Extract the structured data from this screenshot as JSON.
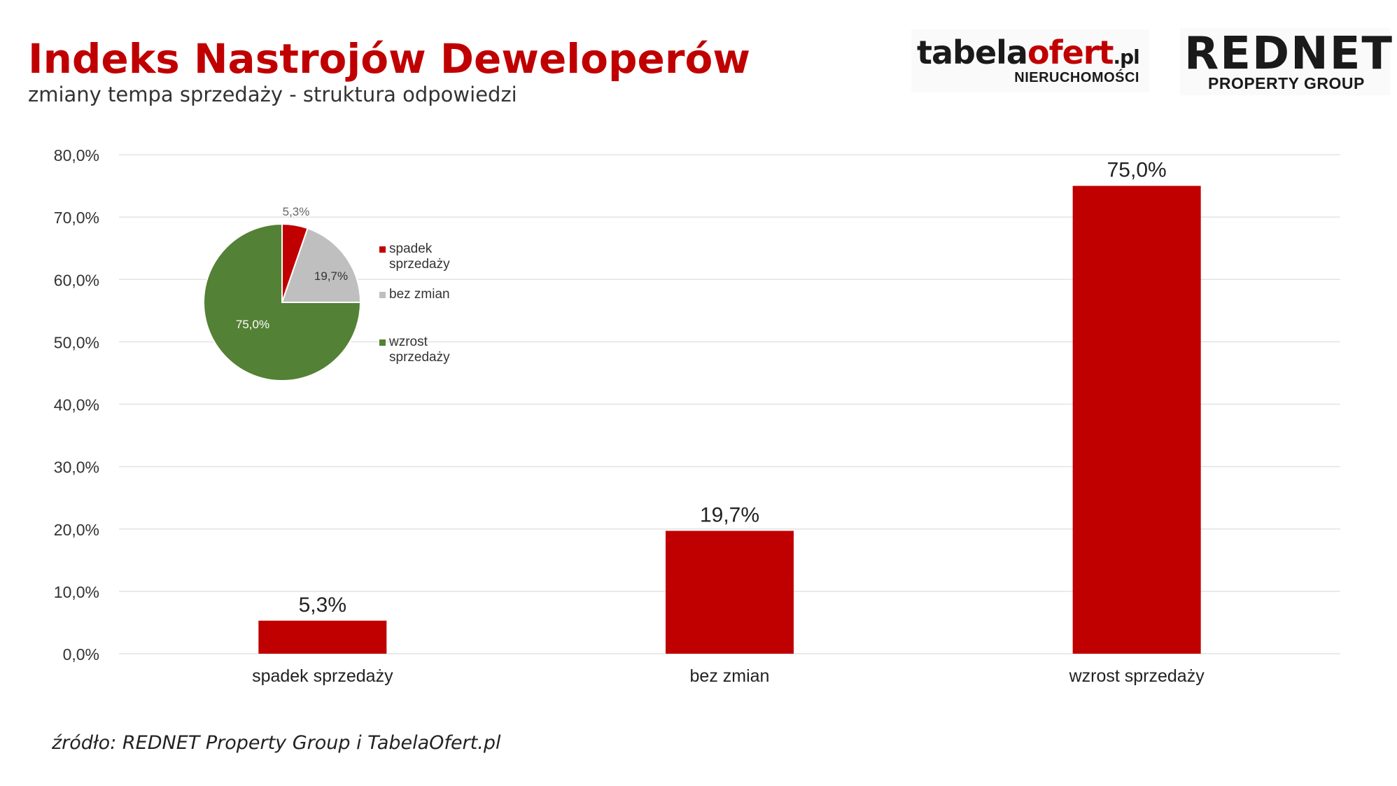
{
  "header": {
    "title": "Indeks Nastrojów Deweloperów",
    "subtitle": "zmiany tempa sprzedaży - struktura odpowiedzi"
  },
  "logos": {
    "tabelaofert": {
      "main_a": "tabela",
      "main_b": "ofert",
      "tld": ".pl",
      "sub": "NIERUCHOMOŚCI"
    },
    "rednet": {
      "main": "REDNET",
      "sub": "PROPERTY GROUP"
    }
  },
  "source": "źródło: REDNET Property Group i TabelaOfert.pl",
  "colors": {
    "bar": "#c00000",
    "pie": [
      "#c00000",
      "#bfbfbf",
      "#538135"
    ],
    "grid": "#e3e3e3"
  },
  "chart_data": [
    {
      "type": "bar",
      "categories": [
        "spadek sprzedaży",
        "bez zmian",
        "wzrost sprzedaży"
      ],
      "values": [
        5.3,
        19.7,
        75.0
      ],
      "value_labels": [
        "5,3%",
        "19,7%",
        "75,0%"
      ],
      "ylim": [
        0,
        80
      ],
      "yticks": [
        "0,0%",
        "10,0%",
        "20,0%",
        "30,0%",
        "40,0%",
        "50,0%",
        "60,0%",
        "70,0%",
        "80,0%"
      ],
      "grid": true
    },
    {
      "type": "pie",
      "categories": [
        "spadek sprzedaży",
        "bez zmian",
        "wzrost sprzedaży"
      ],
      "values": [
        5.3,
        19.7,
        75.0
      ],
      "value_labels": [
        "5,3%",
        "19,7%",
        "75,0%"
      ],
      "legend": [
        "spadek sprzedaży",
        "bez zmian",
        "wzrost sprzedaży"
      ],
      "legend_placement": "right"
    }
  ]
}
